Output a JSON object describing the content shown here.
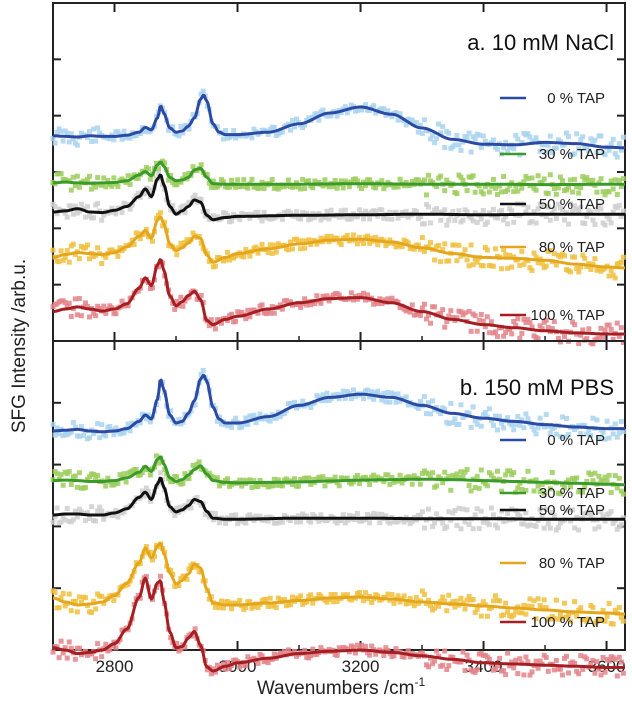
{
  "figure": {
    "ylabel": "SFG Intensity /arb.u.",
    "xlabel": "Wavenumbers /cm",
    "xlabel_superscript": "-1"
  },
  "chart_data": [
    {
      "type": "line",
      "title": "a. 10 mM NaCl",
      "xlim": [
        2700,
        3630
      ],
      "x_ticks": [
        2800,
        3000,
        3200,
        3400,
        3600
      ],
      "grid": false,
      "legend_position": "right",
      "series": [
        {
          "name": "0 % TAP",
          "color": "#2a4aa3",
          "data_color": "#a9d4ee",
          "x": [
            2700,
            2720,
            2740,
            2760,
            2780,
            2800,
            2820,
            2840,
            2850,
            2860,
            2870,
            2875,
            2880,
            2890,
            2900,
            2910,
            2920,
            2930,
            2940,
            2945,
            2950,
            2960,
            2970,
            2980,
            3000,
            3050,
            3100,
            3150,
            3200,
            3250,
            3300,
            3350,
            3400,
            3450,
            3500,
            3550,
            3600,
            3630
          ],
          "y": [
            0.32,
            0.31,
            0.3,
            0.32,
            0.31,
            0.31,
            0.33,
            0.38,
            0.46,
            0.42,
            0.62,
            0.82,
            0.7,
            0.45,
            0.38,
            0.4,
            0.48,
            0.62,
            0.93,
            1.0,
            0.9,
            0.52,
            0.38,
            0.34,
            0.34,
            0.38,
            0.52,
            0.7,
            0.8,
            0.68,
            0.45,
            0.26,
            0.18,
            0.17,
            0.21,
            0.19,
            0.13,
            0.12
          ]
        },
        {
          "name": "30 % TAP",
          "color": "#3a9a2a",
          "data_color": "#9ccc5c",
          "x": [
            2700,
            2720,
            2740,
            2760,
            2780,
            2800,
            2820,
            2840,
            2850,
            2860,
            2870,
            2875,
            2880,
            2890,
            2900,
            2910,
            2920,
            2930,
            2940,
            2950,
            2960,
            2980,
            3000,
            3100,
            3200,
            3300,
            3400,
            3500,
            3630
          ],
          "y": [
            0.05,
            0.07,
            0.05,
            0.04,
            0.05,
            0.06,
            0.1,
            0.24,
            0.32,
            0.22,
            0.48,
            0.55,
            0.45,
            0.18,
            0.1,
            0.12,
            0.18,
            0.36,
            0.4,
            0.18,
            0.03,
            0.02,
            0.02,
            0.02,
            0.03,
            0.02,
            0.02,
            0.01,
            0.02
          ]
        },
        {
          "name": "50 % TAP",
          "color": "#111111",
          "data_color": "#cfcfcf",
          "x": [
            2700,
            2720,
            2740,
            2760,
            2780,
            2800,
            2820,
            2840,
            2850,
            2860,
            2870,
            2875,
            2880,
            2890,
            2900,
            2910,
            2920,
            2930,
            2940,
            2950,
            2960,
            2980,
            3000,
            3100,
            3200,
            3300,
            3400,
            3500,
            3630
          ],
          "y": [
            0.0,
            0.02,
            0.06,
            0.0,
            -0.01,
            0.03,
            0.1,
            0.28,
            0.42,
            0.28,
            0.6,
            0.68,
            0.5,
            0.1,
            -0.04,
            0.02,
            0.1,
            0.22,
            0.18,
            -0.06,
            -0.14,
            -0.1,
            -0.08,
            -0.06,
            -0.05,
            -0.04,
            -0.05,
            -0.04,
            -0.04
          ]
        },
        {
          "name": "80 % TAP",
          "color": "#e5a61c",
          "data_color": "#f0bf3e",
          "x": [
            2700,
            2720,
            2740,
            2760,
            2780,
            2800,
            2820,
            2840,
            2850,
            2860,
            2870,
            2875,
            2880,
            2890,
            2900,
            2910,
            2920,
            2930,
            2940,
            2950,
            2960,
            2980,
            3000,
            3050,
            3100,
            3150,
            3200,
            3250,
            3300,
            3350,
            3400,
            3450,
            3500,
            3550,
            3600,
            3630
          ],
          "y": [
            -0.3,
            -0.24,
            -0.2,
            -0.22,
            -0.24,
            -0.2,
            -0.08,
            0.14,
            0.26,
            0.1,
            0.48,
            0.55,
            0.4,
            -0.02,
            -0.16,
            -0.1,
            0.0,
            0.14,
            0.1,
            -0.25,
            -0.4,
            -0.3,
            -0.22,
            -0.12,
            -0.02,
            0.06,
            0.08,
            0.02,
            -0.1,
            -0.22,
            -0.3,
            -0.32,
            -0.36,
            -0.44,
            -0.5,
            -0.52
          ]
        },
        {
          "name": "100 % TAP",
          "color": "#a51e22",
          "data_color": "#e3848a",
          "x": [
            2700,
            2720,
            2740,
            2760,
            2780,
            2800,
            2820,
            2840,
            2850,
            2860,
            2870,
            2875,
            2880,
            2890,
            2900,
            2910,
            2920,
            2930,
            2940,
            2950,
            2960,
            2980,
            3000,
            3050,
            3100,
            3150,
            3200,
            3250,
            3300,
            3350,
            3400,
            3450,
            3500,
            3550,
            3600,
            3630
          ],
          "y": [
            -0.55,
            -0.5,
            -0.46,
            -0.5,
            -0.54,
            -0.5,
            -0.4,
            -0.1,
            0.1,
            -0.05,
            0.35,
            0.46,
            0.25,
            -0.25,
            -0.44,
            -0.36,
            -0.24,
            -0.16,
            -0.32,
            -0.72,
            -0.8,
            -0.7,
            -0.64,
            -0.5,
            -0.38,
            -0.3,
            -0.28,
            -0.38,
            -0.55,
            -0.7,
            -0.8,
            -0.86,
            -0.92,
            -0.96,
            -0.98,
            -0.98
          ]
        }
      ]
    },
    {
      "type": "line",
      "title": "b. 150 mM PBS",
      "xlim": [
        2700,
        3630
      ],
      "x_ticks": [
        2800,
        3000,
        3200,
        3400,
        3600
      ],
      "grid": false,
      "legend_position": "right",
      "series": [
        {
          "name": "0 % TAP",
          "color": "#2a4aa3",
          "data_color": "#a9d4ee",
          "x": [
            2700,
            2720,
            2740,
            2760,
            2780,
            2800,
            2820,
            2840,
            2850,
            2860,
            2870,
            2875,
            2880,
            2890,
            2900,
            2910,
            2920,
            2930,
            2940,
            2945,
            2950,
            2960,
            2970,
            2980,
            3000,
            3050,
            3100,
            3150,
            3200,
            3250,
            3300,
            3350,
            3400,
            3450,
            3500,
            3550,
            3600,
            3630
          ],
          "y": [
            0.3,
            0.31,
            0.32,
            0.3,
            0.29,
            0.3,
            0.33,
            0.42,
            0.5,
            0.45,
            0.7,
            0.95,
            0.82,
            0.5,
            0.4,
            0.42,
            0.52,
            0.68,
            0.95,
            1.0,
            0.92,
            0.6,
            0.45,
            0.4,
            0.4,
            0.48,
            0.62,
            0.72,
            0.76,
            0.72,
            0.62,
            0.52,
            0.46,
            0.42,
            0.38,
            0.35,
            0.33,
            0.33
          ]
        },
        {
          "name": "30 % TAP",
          "color": "#3a9a2a",
          "data_color": "#9ccc5c",
          "x": [
            2700,
            2720,
            2740,
            2760,
            2780,
            2800,
            2820,
            2840,
            2850,
            2860,
            2870,
            2875,
            2880,
            2890,
            2900,
            2910,
            2920,
            2930,
            2940,
            2950,
            2960,
            2980,
            3000,
            3050,
            3100,
            3150,
            3200,
            3250,
            3300,
            3350,
            3400,
            3450,
            3500,
            3550,
            3600,
            3630
          ],
          "y": [
            0.14,
            0.15,
            0.14,
            0.12,
            0.12,
            0.14,
            0.2,
            0.32,
            0.45,
            0.34,
            0.6,
            0.66,
            0.5,
            0.2,
            0.12,
            0.16,
            0.26,
            0.38,
            0.46,
            0.28,
            0.14,
            0.1,
            0.09,
            0.1,
            0.11,
            0.13,
            0.15,
            0.16,
            0.17,
            0.16,
            0.14,
            0.12,
            0.1,
            0.08,
            0.06,
            0.05
          ]
        },
        {
          "name": "50 % TAP",
          "color": "#111111",
          "data_color": "#cfcfcf",
          "x": [
            2700,
            2720,
            2740,
            2760,
            2780,
            2800,
            2820,
            2840,
            2850,
            2860,
            2870,
            2875,
            2880,
            2890,
            2900,
            2910,
            2920,
            2930,
            2940,
            2950,
            2960,
            2980,
            3000,
            3100,
            3200,
            3300,
            3400,
            3500,
            3630
          ],
          "y": [
            -0.02,
            0.0,
            0.0,
            -0.02,
            -0.02,
            0.02,
            0.1,
            0.32,
            0.42,
            0.28,
            0.58,
            0.7,
            0.52,
            0.14,
            0.04,
            0.08,
            0.16,
            0.28,
            0.24,
            0.05,
            -0.08,
            -0.1,
            -0.1,
            -0.08,
            -0.08,
            -0.09,
            -0.09,
            -0.1,
            -0.1
          ]
        },
        {
          "name": "80 % TAP",
          "color": "#e5a61c",
          "data_color": "#f0bf3e",
          "x": [
            2700,
            2720,
            2740,
            2760,
            2780,
            2800,
            2820,
            2840,
            2850,
            2860,
            2870,
            2875,
            2880,
            2890,
            2900,
            2910,
            2920,
            2930,
            2940,
            2950,
            2960,
            2980,
            3000,
            3050,
            3100,
            3150,
            3200,
            3250,
            3300,
            3350,
            3400,
            3450,
            3500,
            3550,
            3600,
            3630
          ],
          "y": [
            -0.6,
            -0.68,
            -0.74,
            -0.72,
            -0.68,
            -0.55,
            -0.3,
            0.1,
            0.4,
            0.2,
            0.44,
            0.5,
            0.3,
            -0.1,
            -0.32,
            -0.25,
            -0.12,
            0.08,
            0.0,
            -0.42,
            -0.7,
            -0.74,
            -0.74,
            -0.7,
            -0.65,
            -0.6,
            -0.58,
            -0.62,
            -0.68,
            -0.72,
            -0.76,
            -0.8,
            -0.84,
            -0.88,
            -0.9,
            -0.92
          ]
        },
        {
          "name": "100 % TAP",
          "color": "#a51e22",
          "data_color": "#e3848a",
          "x": [
            2700,
            2720,
            2740,
            2760,
            2780,
            2800,
            2820,
            2840,
            2850,
            2860,
            2870,
            2875,
            2880,
            2890,
            2900,
            2910,
            2920,
            2930,
            2940,
            2950,
            2960,
            2980,
            3000,
            3050,
            3100,
            3150,
            3200,
            3250,
            3300,
            3350,
            3400,
            3450,
            3500,
            3550,
            3600,
            3630
          ],
          "y": [
            -0.72,
            -0.76,
            -0.82,
            -0.8,
            -0.76,
            -0.65,
            -0.4,
            0.15,
            0.48,
            0.12,
            0.4,
            0.44,
            0.1,
            -0.45,
            -0.72,
            -0.7,
            -0.55,
            -0.44,
            -0.68,
            -1.05,
            -1.12,
            -1.04,
            -0.98,
            -0.9,
            -0.82,
            -0.78,
            -0.76,
            -0.8,
            -0.86,
            -0.92,
            -0.98,
            -1.0,
            -1.02,
            -1.04,
            -1.06,
            -1.06
          ]
        }
      ]
    }
  ]
}
